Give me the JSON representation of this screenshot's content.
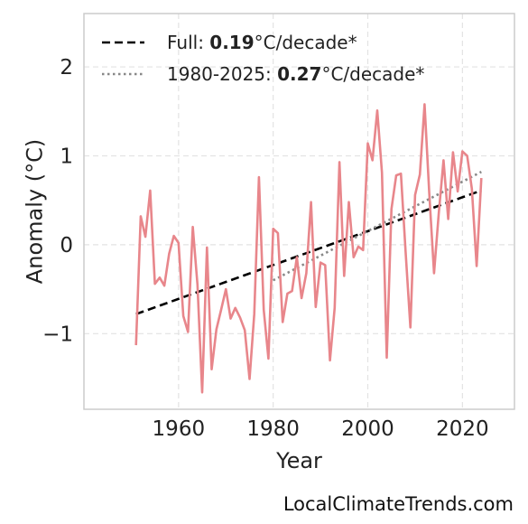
{
  "chart_data": {
    "type": "line",
    "xlabel": "Year",
    "ylabel": "Anomaly (°C)",
    "xlim": [
      1940,
      2031
    ],
    "ylim": [
      -1.85,
      2.6
    ],
    "x_ticks": [
      1960,
      1980,
      2000,
      2020
    ],
    "y_ticks": [
      -1,
      0,
      1,
      2
    ],
    "y_tick_labels": [
      "−1",
      "0",
      "1",
      "2"
    ],
    "grid": true,
    "legend_position": "top-left",
    "colors": {
      "series": "#e8868b",
      "full_trend": "#000000",
      "recent_trend": "#888888"
    },
    "series": [
      {
        "name": "",
        "x": [
          1951,
          1952,
          1953,
          1954,
          1955,
          1956,
          1957,
          1958,
          1959,
          1960,
          1961,
          1962,
          1963,
          1964,
          1965,
          1966,
          1967,
          1968,
          1969,
          1970,
          1971,
          1972,
          1973,
          1974,
          1975,
          1976,
          1977,
          1978,
          1979,
          1980,
          1981,
          1982,
          1983,
          1984,
          1985,
          1986,
          1987,
          1988,
          1989,
          1990,
          1991,
          1992,
          1993,
          1994,
          1995,
          1996,
          1997,
          1998,
          1999,
          2000,
          2001,
          2002,
          2003,
          2004,
          2005,
          2006,
          2007,
          2008,
          2009,
          2010,
          2011,
          2012,
          2013,
          2014,
          2015,
          2016,
          2017,
          2018,
          2019,
          2020,
          2021,
          2022,
          2023,
          2024
        ],
        "y": [
          -1.13,
          0.32,
          0.09,
          0.61,
          -0.44,
          -0.37,
          -0.46,
          -0.1,
          0.1,
          0.02,
          -0.8,
          -0.98,
          0.2,
          -0.45,
          -1.66,
          -0.03,
          -1.4,
          -0.95,
          -0.73,
          -0.5,
          -0.83,
          -0.71,
          -0.82,
          -0.96,
          -1.51,
          -0.78,
          0.76,
          -0.73,
          -1.28,
          0.18,
          0.13,
          -0.87,
          -0.55,
          -0.52,
          -0.14,
          -0.6,
          -0.32,
          0.48,
          -0.7,
          -0.2,
          -0.23,
          -1.3,
          -0.71,
          0.93,
          -0.35,
          0.48,
          -0.14,
          -0.02,
          -0.06,
          1.14,
          0.95,
          1.51,
          0.81,
          -1.27,
          0.4,
          0.78,
          0.8,
          -0.08,
          -0.93,
          0.56,
          0.79,
          1.58,
          0.58,
          -0.32,
          0.35,
          0.95,
          0.29,
          1.04,
          0.6,
          1.05,
          1.0,
          0.63,
          -0.24,
          0.75
        ]
      }
    ],
    "trend_lines": [
      {
        "name": "Full",
        "x": [
          1951,
          2024
        ],
        "y": [
          -0.78,
          0.61
        ],
        "style": "dashed"
      },
      {
        "name": "1980-2025",
        "x": [
          1980,
          2024
        ],
        "y": [
          -0.4,
          0.82
        ],
        "style": "dotted"
      }
    ],
    "legend": [
      {
        "prefix": "Full: ",
        "value": "0.19",
        "suffix": "°C/decade*"
      },
      {
        "prefix": "1980-2025: ",
        "value": "0.27",
        "suffix": "°C/decade*"
      }
    ]
  },
  "credit": "LocalClimateTrends.com"
}
